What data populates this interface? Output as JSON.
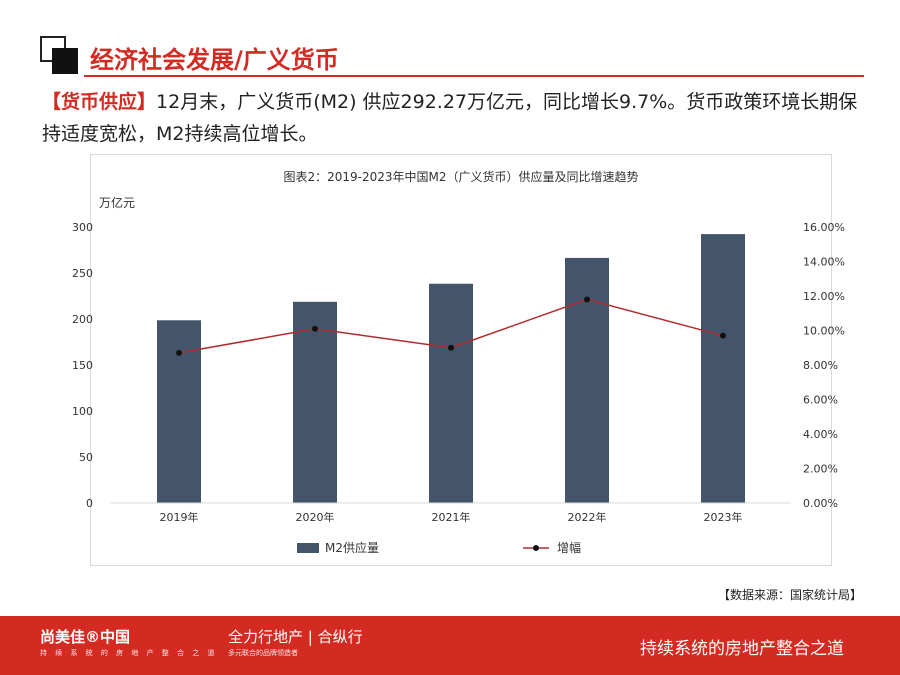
{
  "header": {
    "title": "经济社会发展/广义货币"
  },
  "lead": {
    "tag": "【货币供应】",
    "text": "12月末，广义货币(M2) 供应292.27万亿元，同比增长9.7%。货币政策环境长期保持适度宽松，M2持续高位增长。"
  },
  "chart_data": {
    "type": "bar",
    "title": "图表2：2019-2023年中国M2（广义货币）供应量及同比增速趋势",
    "ylabel": "万亿元",
    "ylim": [
      0,
      300
    ],
    "y_ticks": [
      "0",
      "50",
      "100",
      "150",
      "200",
      "250",
      "300"
    ],
    "y2lim": [
      0,
      0.16
    ],
    "y2_ticks": [
      "0.00%",
      "2.00%",
      "4.00%",
      "6.00%",
      "8.00%",
      "10.00%",
      "12.00%",
      "14.00%",
      "16.00%"
    ],
    "categories": [
      "2019年",
      "2020年",
      "2021年",
      "2022年",
      "2023年"
    ],
    "series": [
      {
        "name": "M2供应量",
        "type": "bar",
        "axis": "left",
        "color": "#44546a",
        "values": [
          198.6,
          218.7,
          238.3,
          266.4,
          292.27
        ]
      },
      {
        "name": "增幅",
        "type": "line",
        "axis": "right",
        "color": "#b02c2c",
        "values": [
          0.087,
          0.101,
          0.09,
          0.118,
          0.097
        ]
      }
    ],
    "legend": "bottom",
    "grid": false
  },
  "source": "【数据来源：国家统计局】",
  "footer": {
    "brand": "尚美佳®中国",
    "brand_sub": "持 续 系 统 的 房 地 产 整 合 之 道",
    "brand2": "全力行地产 | 合纵行",
    "brand2_sub": "多元联合的品牌领造者",
    "slogan": "持续系统的房地产整合之道"
  }
}
